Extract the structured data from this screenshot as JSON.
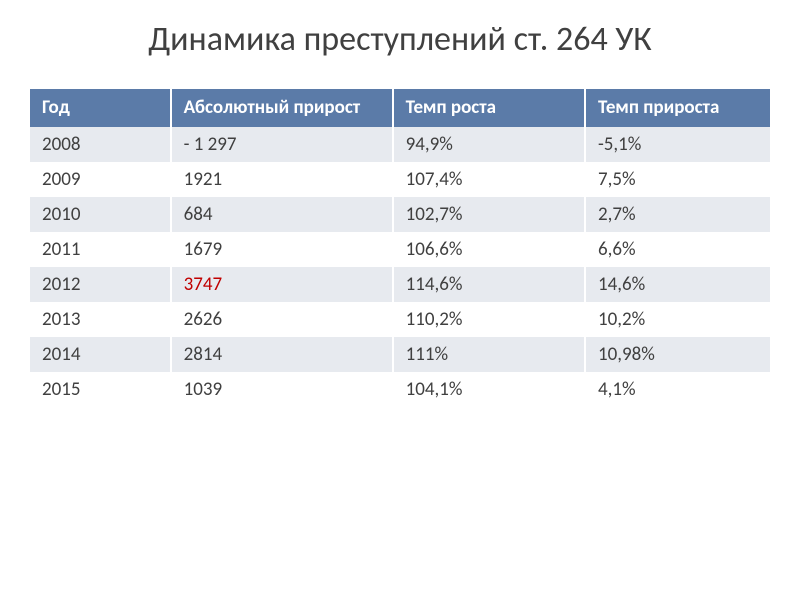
{
  "title": "Динамика преступлений ст. 264 УК",
  "table": {
    "columns": [
      "Год",
      "Абсолютный прирост",
      "Темп роста",
      "Темп прироста"
    ],
    "column_widths": [
      "19%",
      "30%",
      "26%",
      "25%"
    ],
    "header_bg": "#5b7ba8",
    "header_text_color": "#ffffff",
    "row_alt_bg": "#e7eaef",
    "row_bg": "#ffffff",
    "text_color": "#404040",
    "highlight_color": "#c00000",
    "rows": [
      {
        "year": "2008",
        "abs": "- 1 297",
        "growth": "94,9%",
        "inc": "-5,1%",
        "highlight": false
      },
      {
        "year": "2009",
        "abs": "1921",
        "growth": "107,4%",
        "inc": "7,5%",
        "highlight": false
      },
      {
        "year": "2010",
        "abs": "684",
        "growth": "102,7%",
        "inc": "2,7%",
        "highlight": false
      },
      {
        "year": "2011",
        "abs": "1679",
        "growth": "106,6%",
        "inc": "6,6%",
        "highlight": false
      },
      {
        "year": "2012",
        "abs": "3747",
        "growth": "114,6%",
        "inc": "14,6%",
        "highlight": true
      },
      {
        "year": "2013",
        "abs": "2626",
        "growth": "110,2%",
        "inc": "10,2%",
        "highlight": false
      },
      {
        "year": "2014",
        "abs": "2814",
        "growth": "111%",
        "inc": "10,98%",
        "highlight": false
      },
      {
        "year": "2015",
        "abs": "1039",
        "growth": "104,1%",
        "inc": "4,1%",
        "highlight": false
      }
    ]
  }
}
